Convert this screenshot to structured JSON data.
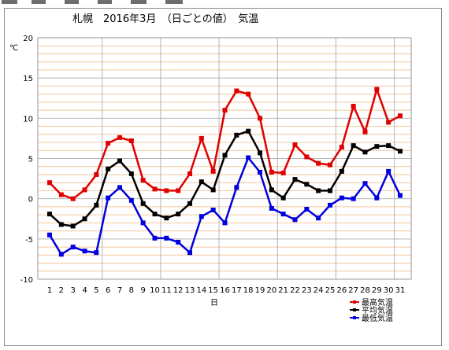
{
  "chart_data": {
    "type": "line",
    "title": "札幌　2016年3月　（日ごとの値）　気温",
    "unit_label": "℃",
    "xlabel": "日",
    "ylim": [
      -10,
      20
    ],
    "ymajor_ticks": [
      -10,
      -5,
      0,
      5,
      10,
      15,
      20
    ],
    "grid": true,
    "legend_position": "bottom-right",
    "x": [
      1,
      2,
      3,
      4,
      5,
      6,
      7,
      8,
      9,
      10,
      11,
      12,
      13,
      14,
      15,
      16,
      17,
      18,
      19,
      20,
      21,
      22,
      23,
      24,
      25,
      26,
      27,
      28,
      29,
      30,
      31
    ],
    "series": [
      {
        "name": "最高気温",
        "color": "#e00000",
        "values": [
          2.0,
          0.5,
          0.0,
          1.1,
          3.0,
          6.9,
          7.6,
          7.2,
          2.3,
          1.2,
          1.0,
          1.0,
          3.1,
          7.5,
          3.4,
          11.0,
          13.4,
          13.0,
          10.0,
          3.3,
          3.2,
          6.7,
          5.2,
          4.4,
          4.2,
          6.4,
          11.5,
          8.3,
          13.6,
          9.5,
          10.3
        ]
      },
      {
        "name": "平均気温",
        "color": "#000000",
        "values": [
          -1.9,
          -3.2,
          -3.4,
          -2.5,
          -0.8,
          3.7,
          4.7,
          3.1,
          -0.6,
          -1.9,
          -2.4,
          -1.9,
          -0.6,
          2.1,
          1.1,
          5.4,
          7.9,
          8.4,
          5.7,
          1.1,
          0.1,
          2.4,
          1.8,
          1.0,
          1.0,
          3.4,
          6.6,
          5.8,
          6.5,
          6.6,
          5.9
        ]
      },
      {
        "name": "最低気温",
        "color": "#0000e0",
        "values": [
          -4.5,
          -6.9,
          -6.0,
          -6.5,
          -6.7,
          0.1,
          1.4,
          -0.2,
          -3.0,
          -4.9,
          -4.9,
          -5.4,
          -6.7,
          -2.2,
          -1.4,
          -3.0,
          1.4,
          5.1,
          3.3,
          -1.2,
          -1.9,
          -2.6,
          -1.3,
          -2.4,
          -0.8,
          0.1,
          0.0,
          1.9,
          0.1,
          3.4,
          0.4
        ]
      }
    ]
  },
  "colors": {
    "minor_grid": "#f4c79b",
    "major_grid": "#b4b4b4",
    "frame_border": "#8a8a8a"
  }
}
